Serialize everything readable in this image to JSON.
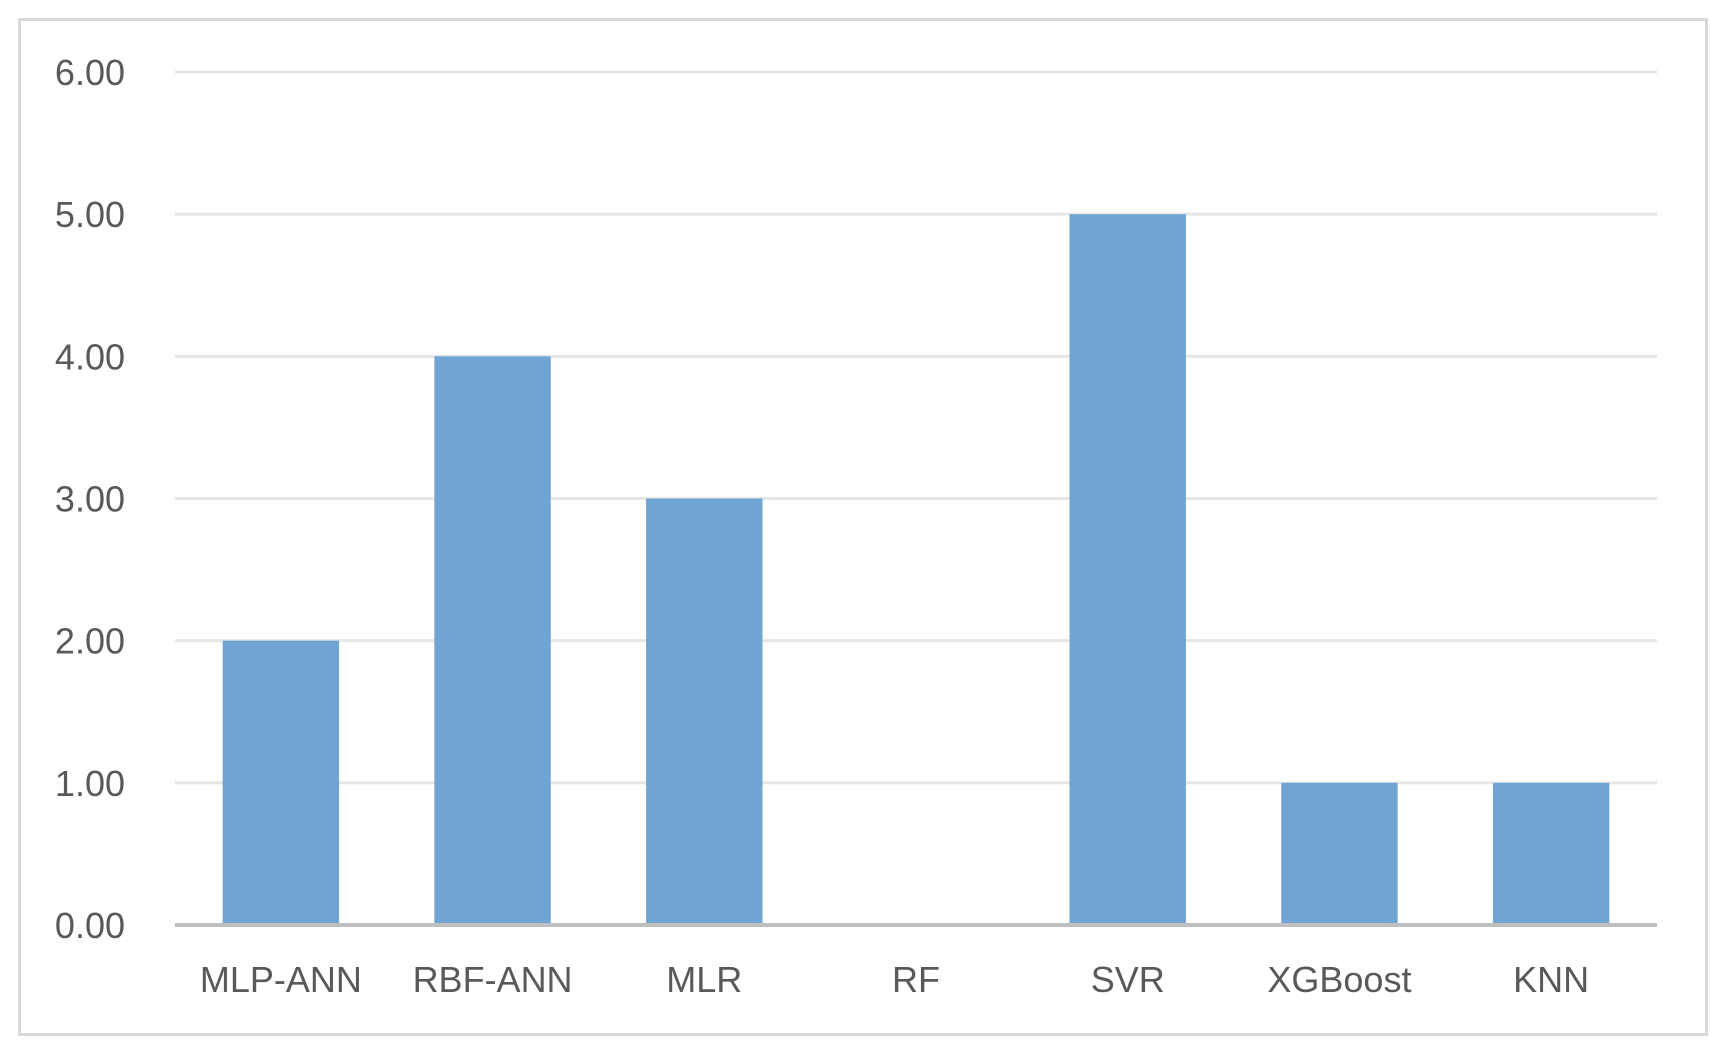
{
  "chart_data": {
    "type": "bar",
    "categories": [
      "MLP-ANN",
      "RBF-ANN",
      "MLR",
      "RF",
      "SVR",
      "XGBoost",
      "KNN"
    ],
    "values": [
      2,
      4,
      3,
      0,
      5,
      1,
      1
    ],
    "title": "",
    "xlabel": "",
    "ylabel": "",
    "ylim": [
      0,
      6
    ],
    "yticks": [
      "0.00",
      "1.00",
      "2.00",
      "3.00",
      "4.00",
      "5.00",
      "6.00"
    ],
    "grid": true,
    "legend": "none",
    "colors": {
      "bar": "#70a5d3",
      "grid": "#e6e6e6",
      "axis": "#bfbfbf",
      "text": "#595959",
      "frame": "#d9d9d9"
    }
  }
}
